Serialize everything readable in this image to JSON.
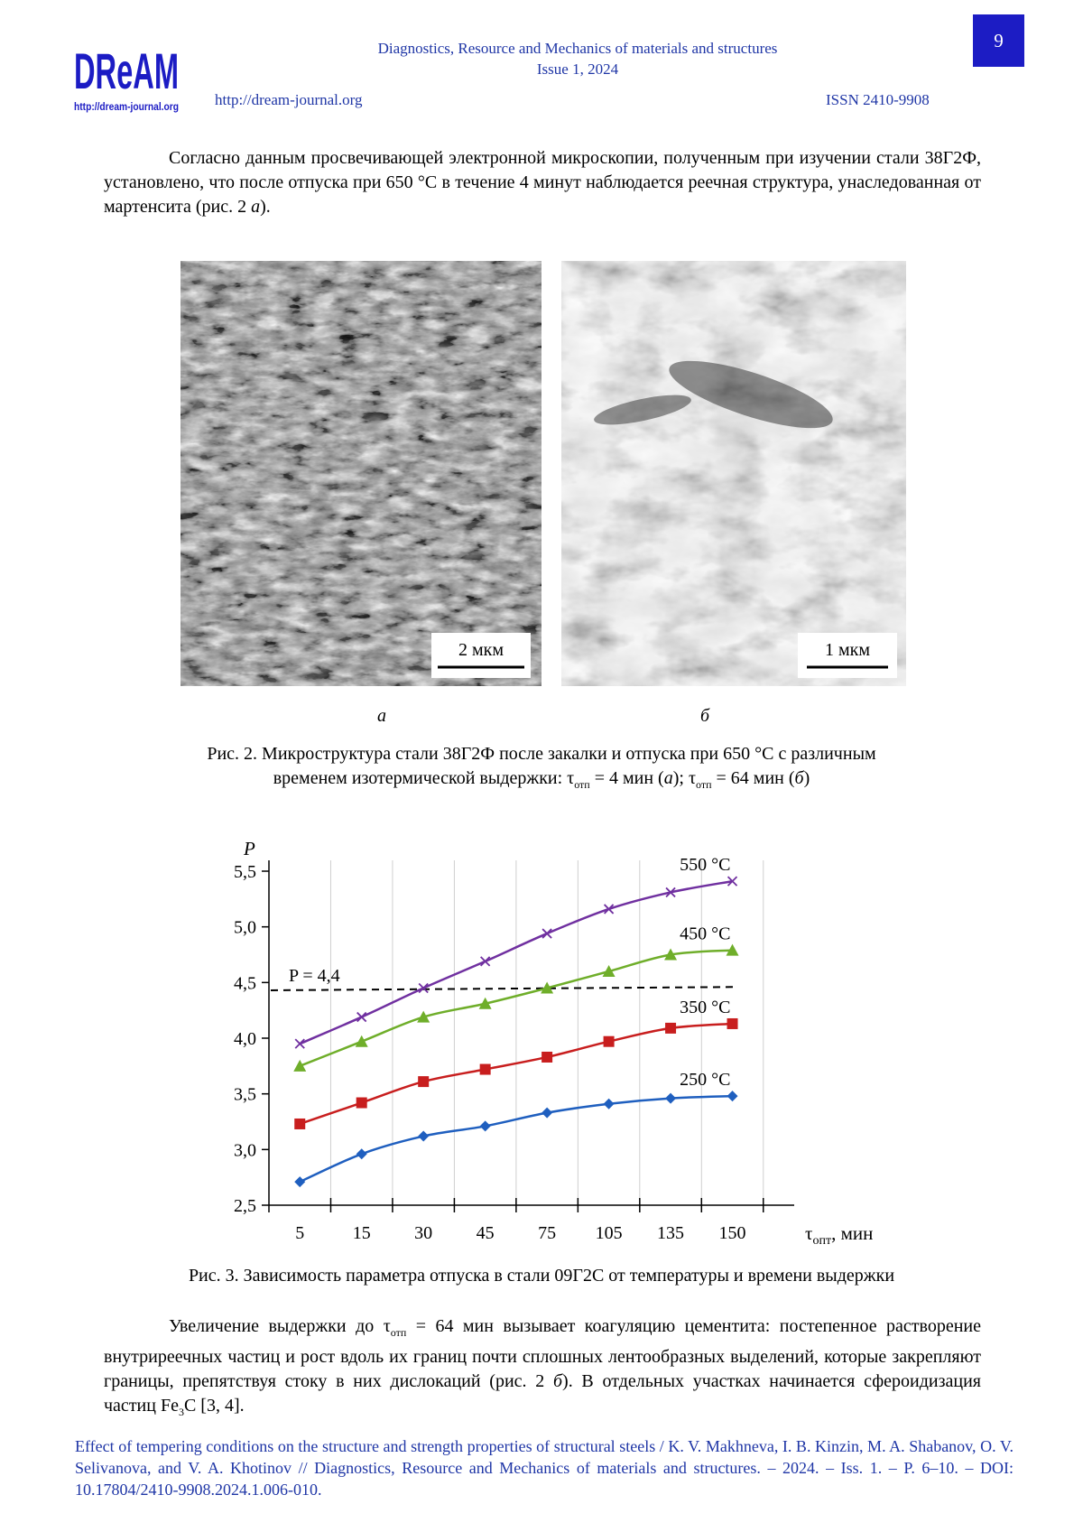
{
  "header": {
    "logo_text": "DReAM",
    "logo_url": "http://dream-journal.org",
    "journal_line1": "Diagnostics, Resource and Mechanics of materials and structures",
    "journal_line2": "Issue 1, 2024",
    "url": "http://dream-journal.org",
    "issn": "ISSN 2410-9908",
    "page_number": "9"
  },
  "body": {
    "paragraph1": "Согласно данным просвечивающей электронной микроскопии, полученным при изучении стали 38Г2Ф, установлено, что после отпуска при 650 °С в течение 4 минут наблюдается реечная структура, унаследованная от мартенсита (рис. 2 ",
    "paragraph1_ref": "а",
    "paragraph1_end": ").",
    "paragraph2_a": "Увеличение выдержки до τ",
    "paragraph2_sub": "отп",
    "paragraph2_b": " = 64 мин вызывает коагуляцию цементита: постепенное растворение внутриреечных частиц и рост вдоль их границ почти сплошных лентообразных выделений, которые закрепляют границы, препятствуя стоку в них дислокаций (рис. 2 ",
    "paragraph2_ref": "б",
    "paragraph2_c": "). В отдельных участках начинается сфероидизация частиц Fe",
    "paragraph2_sub2": "3",
    "paragraph2_d": "С [3, 4]."
  },
  "figure2": {
    "scale_a": "2 мкм",
    "scale_b": "1 мкм",
    "label_a": "а",
    "label_b": "б",
    "caption_line1": "Рис. 2. Микроструктура стали 38Г2Ф после закалки и отпуска при 650 °С с различным",
    "caption_line2a": "временем изотермической выдержки: τ",
    "caption_sub1": "отп",
    "caption_line2b": " = 4 мин (",
    "caption_ref1": "а",
    "caption_line2c": "); τ",
    "caption_sub2": "отп",
    "caption_line2d": " = 64 мин (",
    "caption_ref2": "б",
    "caption_line2e": ")"
  },
  "figure3": {
    "caption": "Рис. 3. Зависимость параметра отпуска в стали 09Г2С от температуры и времени выдержки"
  },
  "chart_data": {
    "type": "line",
    "ylabel": "P",
    "xlabel_symbol": "τ",
    "xlabel_sub": "опт",
    "xlabel_unit": ", мин",
    "categories": [
      "5",
      "15",
      "30",
      "45",
      "75",
      "105",
      "135",
      "150"
    ],
    "ylim": [
      2.5,
      5.5
    ],
    "yticks": [
      "2,5",
      "3,0",
      "3,5",
      "4,0",
      "4,5",
      "5,0",
      "5,5"
    ],
    "grid": "vertical",
    "reference_line": {
      "label": "P = 4,4",
      "y_start": 4.43,
      "y_end": 4.46
    },
    "series": [
      {
        "name": "250 °С",
        "color": "#1f5fbf",
        "marker": "diamond",
        "values": [
          2.71,
          2.96,
          3.12,
          3.21,
          3.33,
          3.41,
          3.46,
          3.48
        ]
      },
      {
        "name": "350 °С",
        "color": "#c81e1e",
        "marker": "square",
        "values": [
          3.23,
          3.42,
          3.61,
          3.72,
          3.83,
          3.97,
          4.09,
          4.13
        ]
      },
      {
        "name": "450 °С",
        "color": "#6fae2a",
        "marker": "triangle",
        "values": [
          3.75,
          3.97,
          4.19,
          4.31,
          4.45,
          4.6,
          4.75,
          4.79
        ]
      },
      {
        "name": "550 °С",
        "color": "#7030a0",
        "marker": "x",
        "values": [
          3.95,
          4.19,
          4.45,
          4.69,
          4.94,
          5.16,
          5.31,
          5.41
        ]
      }
    ]
  },
  "footer": {
    "citation": "Effect of tempering conditions on the structure and strength properties of structural steels / K. V. Makhneva, I. B. Kinzin, M. A. Shabanov, O. V. Selivanova, and V. A. Khotinov // Diagnostics, Resource and Mechanics of materials and structures. – 2024. – Iss. 1. – P. 6–10. – DOI: 10.17804/2410-9908.2024.1.006-010."
  }
}
